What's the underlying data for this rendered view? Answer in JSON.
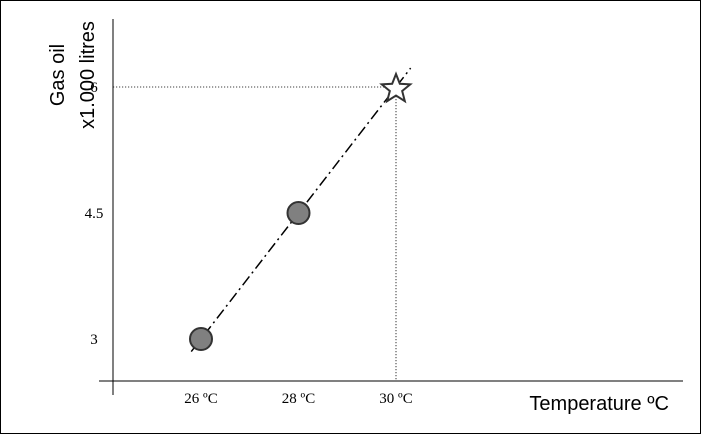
{
  "chart_data": {
    "type": "line",
    "title": "",
    "xlabel": "Temperature ºC",
    "ylabel_lines": [
      "Gas oil",
      "x1.000 litres"
    ],
    "x_ticks": [
      {
        "value": 26,
        "label": "26 ºC"
      },
      {
        "value": 28,
        "label": "28 ºC"
      },
      {
        "value": 30,
        "label": "30 ºC"
      }
    ],
    "y_ticks": [
      {
        "value": 3,
        "label": "3"
      },
      {
        "value": 4.5,
        "label": "4.5"
      },
      {
        "value": 6,
        "label": "6"
      }
    ],
    "series": [
      {
        "points": [
          {
            "x": 26,
            "y": 3,
            "marker": "circle"
          },
          {
            "x": 28,
            "y": 4.5,
            "marker": "circle"
          },
          {
            "x": 30,
            "y": 6,
            "marker": "star"
          }
        ],
        "trend_x_range": [
          25.8,
          30.3
        ]
      }
    ],
    "guide_lines": {
      "x": 30,
      "y": 6
    },
    "grid": false,
    "legend": "none",
    "colors": {
      "marker_fill": "#808080",
      "marker_stroke": "#333333",
      "star_fill": "#ffffff",
      "star_stroke": "#333333",
      "line": "#000000",
      "guide": "#000000"
    }
  }
}
